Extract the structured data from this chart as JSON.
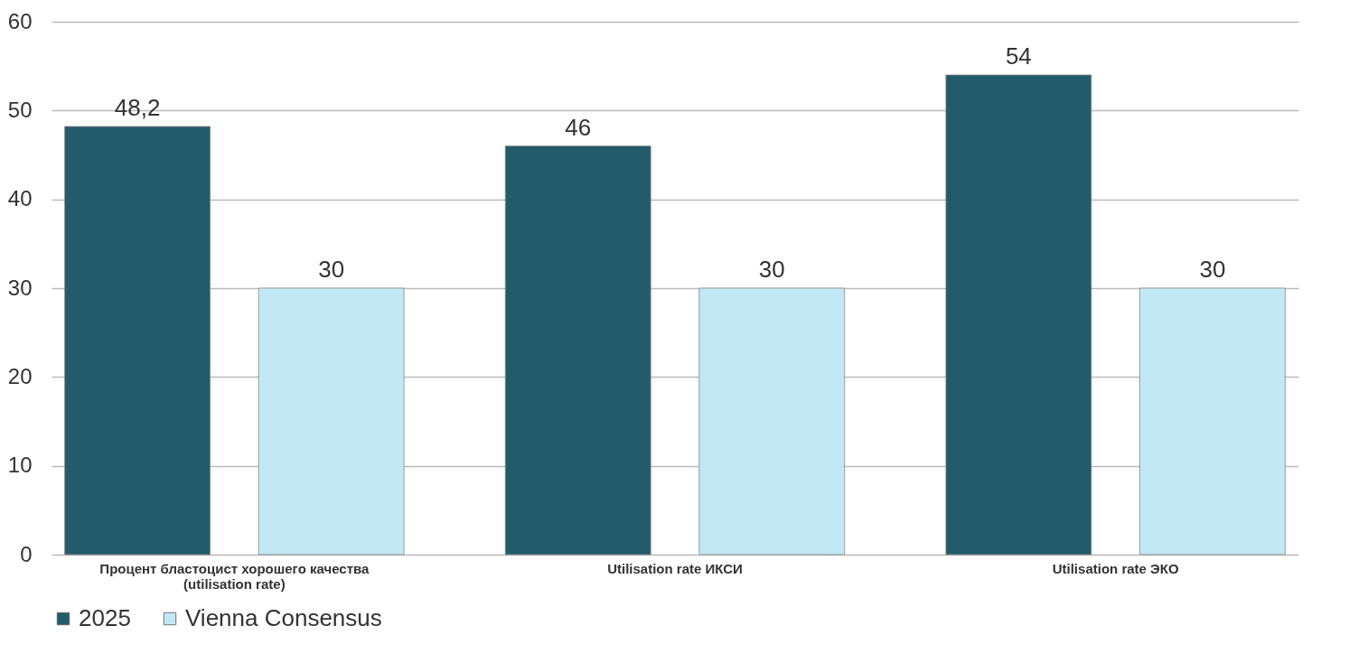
{
  "chart_data": {
    "type": "bar",
    "categories": [
      "Процент бластоцист хорошего качества (utilisation rate)",
      "Utilisation rate ИКСИ",
      "Utilisation rate ЭКО"
    ],
    "series": [
      {
        "name": "2025",
        "color": "#245b6b",
        "values": [
          48.2,
          46,
          54
        ],
        "value_labels": [
          "48,2",
          "46",
          "54"
        ]
      },
      {
        "name": "Vienna Consensus",
        "color": "#c2e9f3",
        "values": [
          30,
          30,
          30
        ],
        "value_labels": [
          "30",
          "30",
          "30"
        ]
      }
    ],
    "ylim": [
      0,
      60
    ],
    "yticks": [
      0,
      10,
      20,
      30,
      40,
      50,
      60
    ],
    "grid": "y",
    "legend": "bottom"
  }
}
